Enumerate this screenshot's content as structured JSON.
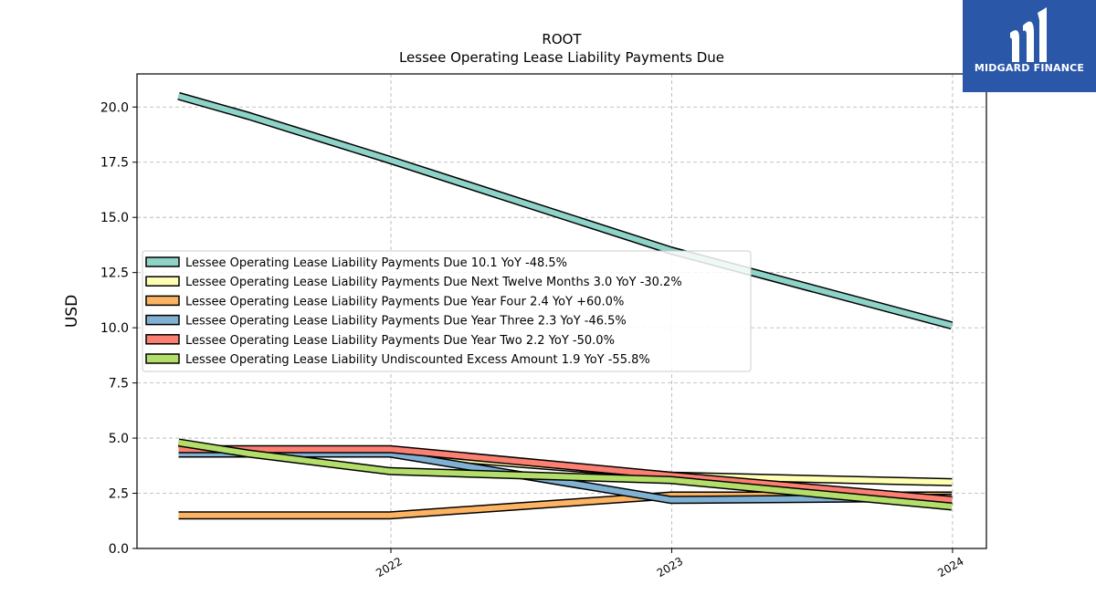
{
  "brand": {
    "name": "MIDGARD FINANCE",
    "bg_color": "#2b57a8"
  },
  "chart_data": {
    "type": "line",
    "title": "ROOT",
    "subtitle": "Lessee Operating Lease Liability Payments Due",
    "ylabel": "USD",
    "xlabel": "",
    "ylim": [
      0,
      21.5
    ],
    "yticks": [
      0.0,
      2.5,
      5.0,
      7.5,
      10.0,
      12.5,
      15.0,
      17.5,
      20.0
    ],
    "ytick_labels": [
      "0.0",
      "2.5",
      "5.0",
      "7.5",
      "10.0",
      "12.5",
      "15.0",
      "17.5",
      "20.0"
    ],
    "xlim": [
      "2021-02-05",
      "2024-02-14"
    ],
    "xticks": [
      "2022-01-01",
      "2023-01-01",
      "2024-01-01"
    ],
    "xtick_labels": [
      "2022",
      "2023",
      "2024"
    ],
    "grid": true,
    "legend_position": "center-left",
    "x": [
      "2021-03-31",
      "2021-06-30",
      "2021-12-31",
      "2022-12-31",
      "2023-12-31"
    ],
    "series": [
      {
        "name": "Lessee Operating Lease Liability Payments Due",
        "legend_label": "Lessee Operating Lease Liability Payments Due  10.1 YoY -48.5%",
        "color": "#8dd3c7",
        "values": [
          20.5,
          19.6,
          17.6,
          13.5,
          10.1
        ]
      },
      {
        "name": "Lessee Operating Lease Liability Payments Due Next Twelve Months",
        "legend_label": "Lessee Operating Lease Liability Payments Due Next Twelve Months  3.0 YoY -30.2%",
        "color": "#ffffb3",
        "values": [
          4.3,
          4.3,
          4.3,
          3.3,
          3.0
        ]
      },
      {
        "name": "Lessee Operating Lease Liability Payments Due Year Four",
        "legend_label": "Lessee Operating Lease Liability Payments Due Year Four  2.4 YoY +60.0%",
        "color": "#fdb462",
        "values": [
          1.5,
          1.5,
          1.5,
          2.4,
          2.4
        ]
      },
      {
        "name": "Lessee Operating Lease Liability Payments Due Year Three",
        "legend_label": "Lessee Operating Lease Liability Payments Due Year Three  2.3 YoY -46.5%",
        "color": "#80b1d3",
        "values": [
          4.3,
          4.3,
          4.3,
          2.2,
          2.3
        ]
      },
      {
        "name": "Lessee Operating Lease Liability Payments Due Year Two",
        "legend_label": "Lessee Operating Lease Liability Payments Due Year Two  2.2 YoY -50.0%",
        "color": "#fb8072",
        "values": [
          4.5,
          4.5,
          4.5,
          3.3,
          2.2
        ]
      },
      {
        "name": "Lessee Operating Lease Liability Undiscounted Excess Amount",
        "legend_label": "Lessee Operating Lease Liability Undiscounted Excess Amount  1.9 YoY -55.8%",
        "color": "#b3de69",
        "values": [
          4.8,
          4.3,
          3.5,
          3.1,
          1.9
        ]
      }
    ]
  }
}
